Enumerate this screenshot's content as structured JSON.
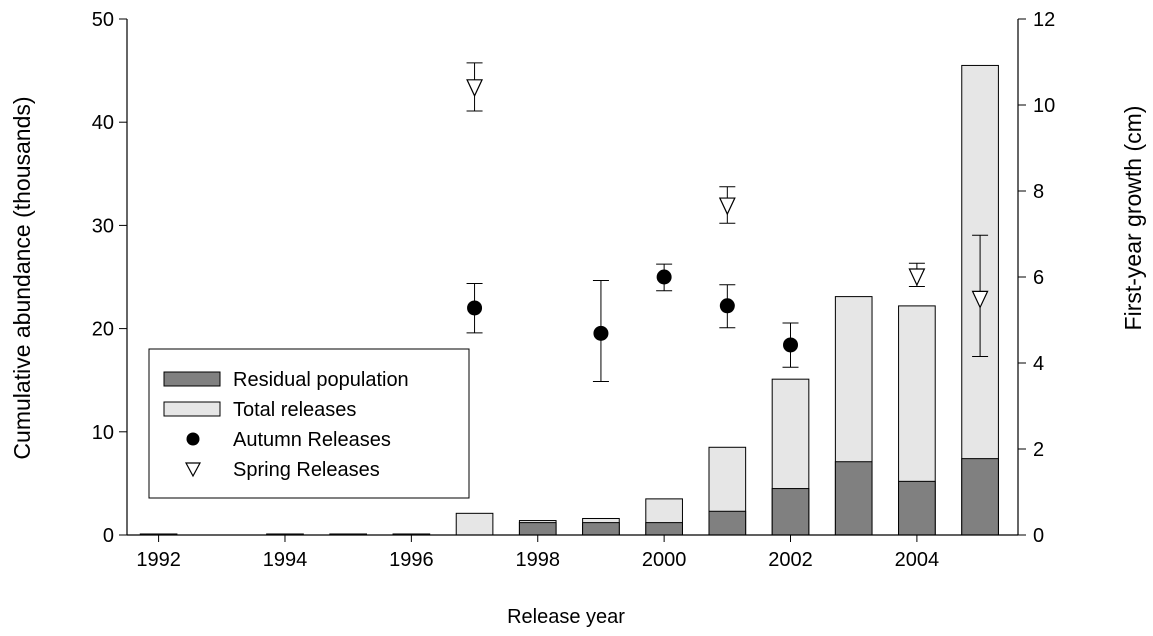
{
  "chart_data": {
    "type": "bar",
    "xlabel": "Release year",
    "ylabel_left": "Cumulative abundance (thousands)",
    "ylabel_right": "First-year growth (cm)",
    "ylim_left": [
      0,
      50
    ],
    "ylim_right": [
      0,
      12
    ],
    "xlim": [
      1991.5,
      2005.6
    ],
    "yticks_left": [
      "0",
      "10",
      "20",
      "30",
      "40",
      "50"
    ],
    "yticks_right": [
      "0",
      "2",
      "4",
      "6",
      "8",
      "10",
      "12"
    ],
    "xticks": [
      "1992",
      "1994",
      "1996",
      "1998",
      "2000",
      "2002",
      "2004"
    ],
    "grid": false,
    "legend_position": "lower-left",
    "legend": [
      {
        "label": "Residual population",
        "symbol": "bar-dark"
      },
      {
        "label": "Total releases",
        "symbol": "bar-light"
      },
      {
        "label": "Autumn Releases",
        "symbol": "filled-circle"
      },
      {
        "label": "Spring Releases",
        "symbol": "open-triangle-down"
      }
    ],
    "bar_series": {
      "total_releases": {
        "name": "Total releases",
        "color": "#e6e6e6",
        "x": [
          1992,
          1994,
          1995,
          1996,
          1997,
          1998,
          1999,
          2000,
          2001,
          2002,
          2003,
          2004,
          2005
        ],
        "values": [
          0.1,
          0.1,
          0.1,
          0.1,
          2.1,
          1.4,
          1.6,
          3.5,
          8.5,
          15.1,
          23.1,
          22.2,
          45.5
        ]
      },
      "residual_population": {
        "name": "Residual population",
        "color": "#808080",
        "x": [
          1992,
          1994,
          1995,
          1996,
          1997,
          1998,
          1999,
          2000,
          2001,
          2002,
          2003,
          2004,
          2005
        ],
        "values": [
          0,
          0,
          0,
          0,
          0,
          1.2,
          1.2,
          1.2,
          2.3,
          4.5,
          7.1,
          5.2,
          7.4
        ]
      }
    },
    "point_series": [
      {
        "name": "Autumn Releases",
        "axis": "right",
        "marker": "filled-circle",
        "points": [
          {
            "x": 1997,
            "y": 5.28,
            "err_low": 4.7,
            "err_high": 5.85
          },
          {
            "x": 1999,
            "y": 4.69,
            "err_low": 3.57,
            "err_high": 5.92
          },
          {
            "x": 2000,
            "y": 6.0,
            "err_low": 5.68,
            "err_high": 6.3
          },
          {
            "x": 2001,
            "y": 5.33,
            "err_low": 4.82,
            "err_high": 5.82
          },
          {
            "x": 2002,
            "y": 4.42,
            "err_low": 3.9,
            "err_high": 4.93
          }
        ]
      },
      {
        "name": "Spring Releases",
        "axis": "right",
        "marker": "open-triangle-down",
        "points": [
          {
            "x": 1997,
            "y": 10.4,
            "err_low": 9.86,
            "err_high": 10.98
          },
          {
            "x": 2001,
            "y": 7.65,
            "err_low": 7.25,
            "err_high": 8.1
          },
          {
            "x": 2004,
            "y": 6.0,
            "err_low": 5.78,
            "err_high": 6.32
          },
          {
            "x": 2005,
            "y": 5.48,
            "err_low": 4.15,
            "err_high": 6.97
          }
        ]
      }
    ]
  }
}
